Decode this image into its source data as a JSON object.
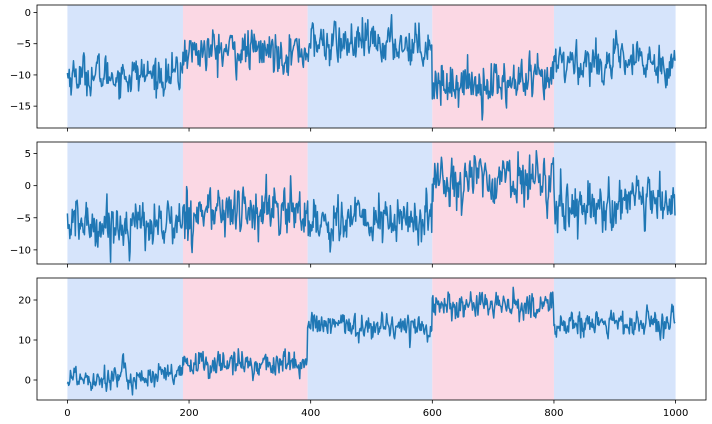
{
  "chart_data": [
    {
      "type": "line",
      "xlim": [
        -50,
        1050
      ],
      "ylim": [
        -18.5,
        1.2
      ],
      "yticks": [
        0,
        -5,
        -10,
        -15
      ],
      "ytick_labels": [
        "0",
        "−5",
        "−10",
        "−15"
      ],
      "show_xtick_labels": false,
      "regime_colors": [
        "#d6e4fb",
        "#fbd8e4"
      ],
      "regimes": [
        {
          "start": 0,
          "end": 190,
          "color": "#d6e4fb"
        },
        {
          "start": 190,
          "end": 395,
          "color": "#fbd8e4"
        },
        {
          "start": 395,
          "end": 600,
          "color": "#d6e4fb"
        },
        {
          "start": 600,
          "end": 800,
          "color": "#fbd8e4"
        },
        {
          "start": 800,
          "end": 1000,
          "color": "#d6e4fb"
        }
      ],
      "series": [
        {
          "color": "#1f77b4",
          "segments": [
            {
              "start": 0,
              "end": 190,
              "mean": -10,
              "spread": 1.4
            },
            {
              "start": 190,
              "end": 395,
              "mean": -6.2,
              "spread": 1.5
            },
            {
              "start": 395,
              "end": 600,
              "mean": -5,
              "spread": 1.5
            },
            {
              "start": 600,
              "end": 800,
              "mean": -11.3,
              "spread": 1.6
            },
            {
              "start": 800,
              "end": 1000,
              "mean": -8,
              "spread": 1.5
            }
          ]
        }
      ]
    },
    {
      "type": "line",
      "xlim": [
        -50,
        1050
      ],
      "ylim": [
        -12.2,
        6.8
      ],
      "yticks": [
        5,
        0,
        -5,
        -10
      ],
      "ytick_labels": [
        "5",
        "0",
        "−5",
        "−10"
      ],
      "show_xtick_labels": false,
      "regimes": [
        {
          "start": 0,
          "end": 190,
          "color": "#d6e4fb"
        },
        {
          "start": 190,
          "end": 395,
          "color": "#fbd8e4"
        },
        {
          "start": 395,
          "end": 600,
          "color": "#d6e4fb"
        },
        {
          "start": 600,
          "end": 800,
          "color": "#fbd8e4"
        },
        {
          "start": 800,
          "end": 1000,
          "color": "#d6e4fb"
        }
      ],
      "series": [
        {
          "color": "#1f77b4",
          "segments": [
            {
              "start": 0,
              "end": 190,
              "mean": -6,
              "spread": 1.7
            },
            {
              "start": 190,
              "end": 395,
              "mean": -4,
              "spread": 1.8
            },
            {
              "start": 395,
              "end": 600,
              "mean": -5.5,
              "spread": 1.8
            },
            {
              "start": 600,
              "end": 800,
              "mean": 1,
              "spread": 1.7
            },
            {
              "start": 800,
              "end": 1000,
              "mean": -3,
              "spread": 1.8
            }
          ]
        }
      ]
    },
    {
      "type": "line",
      "xlim": [
        -50,
        1050
      ],
      "ylim": [
        -5,
        25.5
      ],
      "yticks": [
        20,
        10,
        0
      ],
      "ytick_labels": [
        "20",
        "10",
        "0"
      ],
      "xticks": [
        0,
        200,
        400,
        600,
        800,
        1000
      ],
      "xtick_labels": [
        "0",
        "200",
        "400",
        "600",
        "800",
        "1000"
      ],
      "show_xtick_labels": true,
      "regimes": [
        {
          "start": 0,
          "end": 190,
          "color": "#d6e4fb"
        },
        {
          "start": 190,
          "end": 395,
          "color": "#fbd8e4"
        },
        {
          "start": 395,
          "end": 600,
          "color": "#d6e4fb"
        },
        {
          "start": 600,
          "end": 800,
          "color": "#fbd8e4"
        },
        {
          "start": 800,
          "end": 1000,
          "color": "#d6e4fb"
        }
      ],
      "series": [
        {
          "color": "#1f77b4",
          "segments": [
            {
              "start": 0,
              "end": 190,
              "mean": 0.8,
              "spread": 1.5
            },
            {
              "start": 190,
              "end": 395,
              "mean": 4,
              "spread": 1.5
            },
            {
              "start": 395,
              "end": 600,
              "mean": 13.5,
              "spread": 1.5
            },
            {
              "start": 600,
              "end": 800,
              "mean": 18.5,
              "spread": 1.5
            },
            {
              "start": 800,
              "end": 1000,
              "mean": 14,
              "spread": 1.5
            }
          ]
        }
      ]
    }
  ]
}
